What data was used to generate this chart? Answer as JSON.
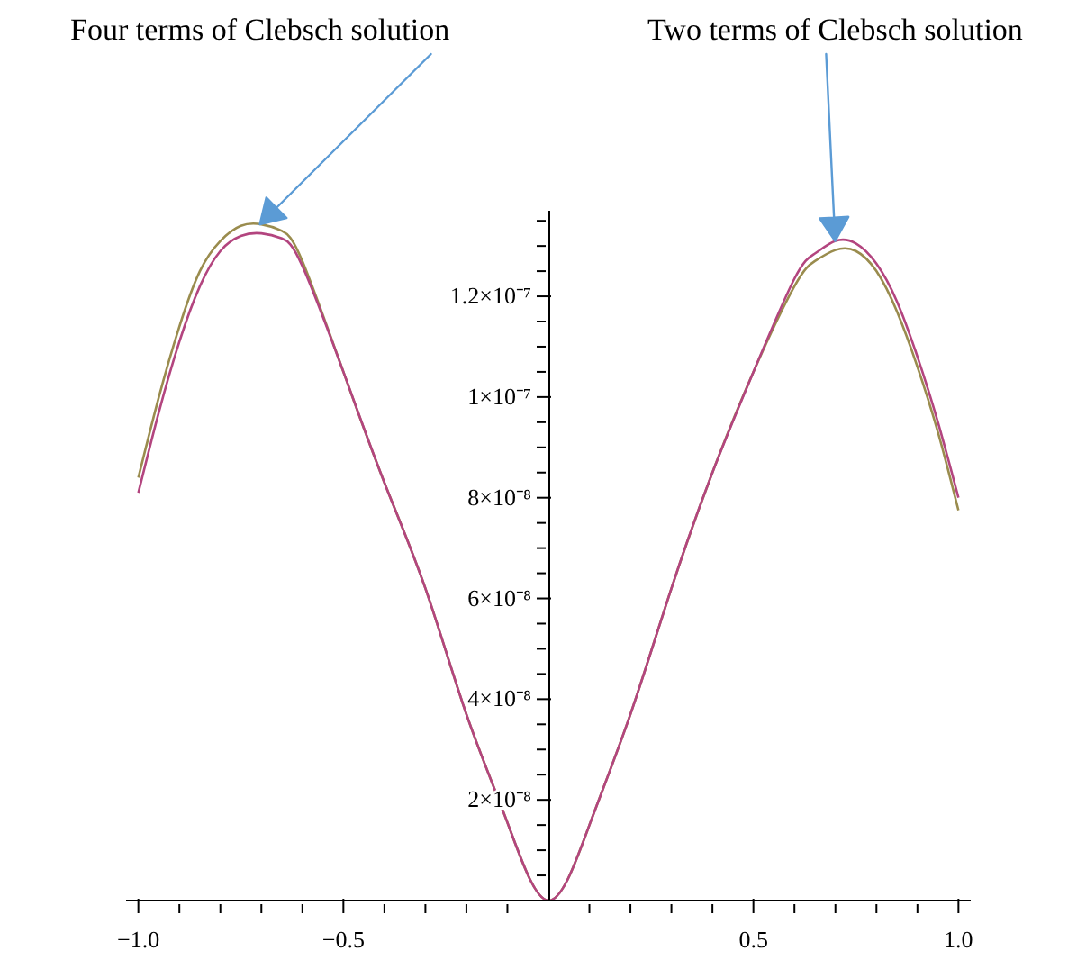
{
  "chart_data": {
    "type": "line",
    "annotations": [
      "Four terms of Clebsch solution",
      "Two terms of Clebsch solution"
    ],
    "x": [
      -1,
      -0.95,
      -0.9,
      -0.85,
      -0.8,
      -0.75,
      -0.7,
      -0.65,
      -0.6,
      -0.5,
      -0.4,
      -0.3,
      -0.2,
      -0.1,
      0,
      0.1,
      0.2,
      0.3,
      0.4,
      0.5,
      0.6,
      0.65,
      0.7,
      0.75,
      0.8,
      0.85,
      0.9,
      0.95,
      1
    ],
    "series": [
      {
        "color": "#9a8c4e",
        "values": [
          8.4e-08,
          1e-07,
          1.14e-07,
          1.25e-07,
          1.31e-07,
          1.34e-07,
          1.343e-07,
          1.33e-07,
          1.27e-07,
          1.05e-07,
          8.3e-08,
          6.2e-08,
          3.7e-08,
          1.55e-08,
          0,
          1.5e-08,
          3.7e-08,
          6.2e-08,
          8.5e-08,
          1.05e-07,
          1.22e-07,
          1.27e-07,
          1.292e-07,
          1.29e-07,
          1.25e-07,
          1.17e-07,
          1.06e-07,
          9.3e-08,
          7.75e-08
        ]
      },
      {
        "color": "#b3457f",
        "values": [
          8.1e-08,
          9.7e-08,
          1.11e-07,
          1.22e-07,
          1.29e-07,
          1.32e-07,
          1.325e-07,
          1.315e-07,
          1.26e-07,
          1.05e-07,
          8.3e-08,
          6.2e-08,
          3.7e-08,
          1.55e-08,
          0,
          1.5e-08,
          3.7e-08,
          6.2e-08,
          8.5e-08,
          1.05e-07,
          1.235e-07,
          1.285e-07,
          1.31e-07,
          1.305e-07,
          1.265e-07,
          1.19e-07,
          1.08e-07,
          9.5e-08,
          8e-08
        ]
      }
    ],
    "xlim": [
      -1.03,
      1.03
    ],
    "xticks": [
      {
        "value": -1,
        "label": "−1.0"
      },
      {
        "value": -0.9,
        "label": null
      },
      {
        "value": -0.8,
        "label": null
      },
      {
        "value": -0.7,
        "label": null
      },
      {
        "value": -0.6,
        "label": null
      },
      {
        "value": -0.5,
        "label": "−0.5"
      },
      {
        "value": -0.4,
        "label": null
      },
      {
        "value": -0.3,
        "label": null
      },
      {
        "value": -0.2,
        "label": null
      },
      {
        "value": -0.1,
        "label": null
      },
      {
        "value": 0.1,
        "label": null
      },
      {
        "value": 0.2,
        "label": null
      },
      {
        "value": 0.3,
        "label": null
      },
      {
        "value": 0.4,
        "label": null
      },
      {
        "value": 0.5,
        "label": "0.5"
      },
      {
        "value": 0.6,
        "label": null
      },
      {
        "value": 0.7,
        "label": null
      },
      {
        "value": 0.8,
        "label": null
      },
      {
        "value": 0.9,
        "label": null
      },
      {
        "value": 1,
        "label": "1.0"
      }
    ],
    "ylim": [
      0,
      1.37e-07
    ],
    "yticks": [
      {
        "value": 5e-09,
        "label": null
      },
      {
        "value": 1e-08,
        "label": null
      },
      {
        "value": 1.5e-08,
        "label": null
      },
      {
        "value": 2e-08,
        "label": "2×10⁻⁸"
      },
      {
        "value": 2.5e-08,
        "label": null
      },
      {
        "value": 3e-08,
        "label": null
      },
      {
        "value": 3.5e-08,
        "label": null
      },
      {
        "value": 4e-08,
        "label": "4×10⁻⁸"
      },
      {
        "value": 4.5e-08,
        "label": null
      },
      {
        "value": 5e-08,
        "label": null
      },
      {
        "value": 5.5e-08,
        "label": null
      },
      {
        "value": 6e-08,
        "label": "6×10⁻⁸"
      },
      {
        "value": 6.5e-08,
        "label": null
      },
      {
        "value": 7e-08,
        "label": null
      },
      {
        "value": 7.5e-08,
        "label": null
      },
      {
        "value": 8e-08,
        "label": "8×10⁻⁸"
      },
      {
        "value": 8.5e-08,
        "label": null
      },
      {
        "value": 9e-08,
        "label": null
      },
      {
        "value": 9.5e-08,
        "label": null
      },
      {
        "value": 1e-07,
        "label": "1×10⁻⁷"
      },
      {
        "value": 1.05e-07,
        "label": null
      },
      {
        "value": 1.1e-07,
        "label": null
      },
      {
        "value": 1.15e-07,
        "label": null
      },
      {
        "value": 1.2e-07,
        "label": "1.2×10⁻⁷"
      },
      {
        "value": 1.25e-07,
        "label": null
      },
      {
        "value": 1.3e-07,
        "label": null
      },
      {
        "value": 1.35e-07,
        "label": null
      }
    ]
  }
}
